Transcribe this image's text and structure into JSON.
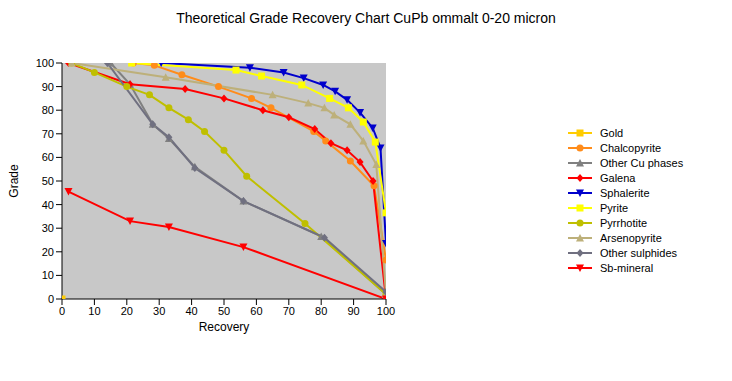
{
  "chart_data": {
    "type": "line",
    "title": "Theoretical Grade Recovery Chart CuPb ommalt 0-20 micron",
    "x_label": "Recovery",
    "y_label": "Grade",
    "xlim": [
      0,
      100
    ],
    "ylim": [
      0,
      100
    ],
    "xticks": [
      0,
      10,
      20,
      30,
      40,
      50,
      60,
      70,
      80,
      90,
      100
    ],
    "yticks": [
      0,
      10,
      20,
      30,
      40,
      50,
      60,
      70,
      80,
      90,
      100
    ],
    "grid": false,
    "legend": "right",
    "series": [
      {
        "name": "Gold",
        "color": "#FFCC00",
        "marker": "square",
        "x": [
          0
        ],
        "values": [
          0
        ]
      },
      {
        "name": "Chalcopyrite",
        "color": "#FF8C1A",
        "marker": "circle",
        "x": [
          22,
          28.5,
          37,
          48.3,
          58.5,
          64.5,
          77.7,
          81.4,
          89,
          96.3,
          100
        ],
        "values": [
          100,
          99,
          95,
          90,
          85,
          81,
          71,
          67,
          58.5,
          48,
          16.5
        ]
      },
      {
        "name": "Other Cu phases",
        "color": "#808080",
        "marker": "triangle",
        "x": [
          15,
          21,
          28,
          33,
          41,
          56,
          80,
          100
        ],
        "values": [
          100,
          91,
          74,
          68,
          56,
          41.5,
          26.5,
          2
        ]
      },
      {
        "name": "Galena",
        "color": "#FF0000",
        "marker": "diamond",
        "x": [
          2,
          21,
          38,
          50,
          62,
          70,
          78,
          83,
          88,
          92,
          96,
          100
        ],
        "values": [
          100,
          91,
          89,
          85,
          80,
          77,
          72,
          66,
          63,
          58,
          50,
          0
        ]
      },
      {
        "name": "Sphalerite",
        "color": "#0000CC",
        "marker": "triangle-down",
        "x": [
          30.6,
          58,
          68.4,
          74.6,
          80.6,
          84.3,
          88,
          92,
          95.9,
          98.3,
          100
        ],
        "values": [
          100,
          98,
          96,
          93.6,
          90.7,
          88,
          84.4,
          79,
          72.5,
          64,
          23.5
        ]
      },
      {
        "name": "Pyrite",
        "color": "#FFFF00",
        "marker": "square",
        "x": [
          21.5,
          53.7,
          61.6,
          74,
          82.6,
          88.4,
          93,
          96.7,
          100
        ],
        "values": [
          100,
          97,
          94.5,
          90.7,
          85,
          81,
          75,
          66.5,
          36.5
        ]
      },
      {
        "name": "Pyrrhotite",
        "color": "#BFBF00",
        "marker": "circle",
        "x": [
          3,
          10,
          20,
          27,
          33,
          39,
          44,
          50,
          57,
          75,
          100
        ],
        "values": [
          100,
          96,
          90,
          86.5,
          81,
          76,
          71,
          63,
          52,
          32,
          2
        ]
      },
      {
        "name": "Arsenopyrite",
        "color": "#BDB07A",
        "marker": "triangle",
        "x": [
          3,
          32,
          65,
          76,
          81,
          84,
          89,
          93,
          97,
          100
        ],
        "values": [
          100,
          94,
          86.5,
          83,
          81,
          78,
          74,
          67,
          57,
          2
        ]
      },
      {
        "name": "Other sulphides",
        "color": "#707080",
        "marker": "diamond",
        "x": [
          14,
          28,
          33,
          41,
          56,
          81,
          100
        ],
        "values": [
          100,
          74,
          68.5,
          55.5,
          41.5,
          26,
          3
        ]
      },
      {
        "name": "Sb-mineral",
        "color": "#FF0000",
        "marker": "triangle-down",
        "x": [
          2,
          21,
          33,
          56,
          100
        ],
        "values": [
          45.5,
          33,
          30.5,
          22,
          0
        ]
      }
    ]
  }
}
